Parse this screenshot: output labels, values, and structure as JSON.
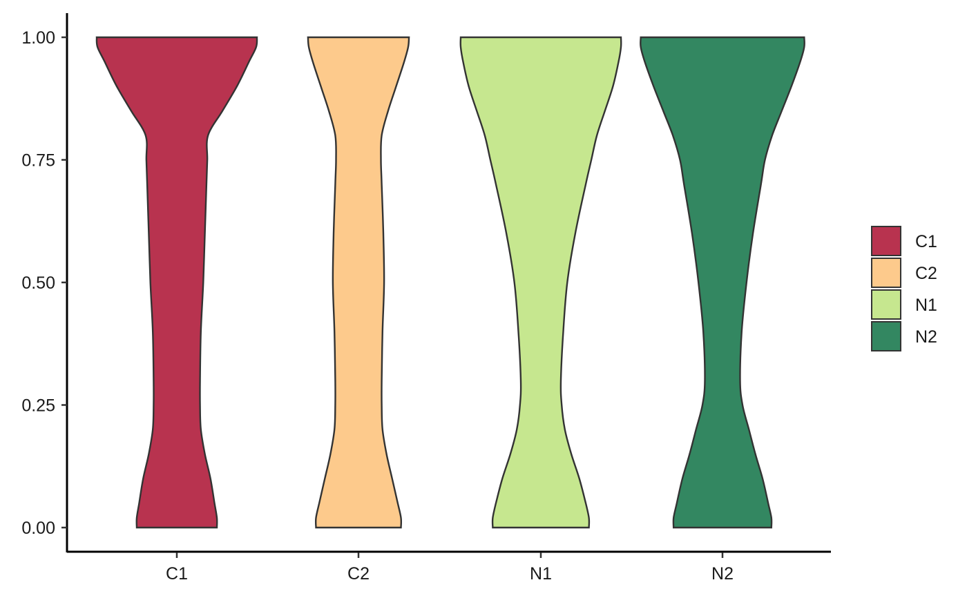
{
  "chart_data": {
    "type": "violin",
    "title": "",
    "xlabel": "",
    "ylabel": "",
    "ylim": [
      -0.04,
      1.05
    ],
    "yticks": [
      {
        "value": 0.0,
        "label": "0.00"
      },
      {
        "value": 0.25,
        "label": "0.25"
      },
      {
        "value": 0.5,
        "label": "0.50"
      },
      {
        "value": 0.75,
        "label": "0.75"
      },
      {
        "value": 1.0,
        "label": "1.00"
      }
    ],
    "categories": [
      "C1",
      "C2",
      "N1",
      "N2"
    ],
    "grid": false,
    "legend": {
      "position": "right",
      "entries": [
        {
          "label": "C1",
          "color": "#b8334f"
        },
        {
          "label": "C2",
          "color": "#fdca8c"
        },
        {
          "label": "N1",
          "color": "#c6e78f"
        },
        {
          "label": "N2",
          "color": "#338761"
        }
      ]
    },
    "series": [
      {
        "category": "C1",
        "color": "#b8334f",
        "y_range": [
          0.0,
          1.0
        ],
        "density_width": [
          [
            0.0,
            0.5
          ],
          [
            0.02,
            0.5
          ],
          [
            0.05,
            0.47
          ],
          [
            0.1,
            0.42
          ],
          [
            0.15,
            0.35
          ],
          [
            0.2,
            0.3
          ],
          [
            0.25,
            0.29
          ],
          [
            0.3,
            0.29
          ],
          [
            0.4,
            0.3
          ],
          [
            0.5,
            0.33
          ],
          [
            0.6,
            0.35
          ],
          [
            0.7,
            0.37
          ],
          [
            0.75,
            0.38
          ],
          [
            0.8,
            0.39
          ],
          [
            0.85,
            0.57
          ],
          [
            0.9,
            0.75
          ],
          [
            0.95,
            0.9
          ],
          [
            0.98,
            0.99
          ],
          [
            1.0,
            1.0
          ]
        ]
      },
      {
        "category": "C2",
        "color": "#fdca8c",
        "y_range": [
          0.0,
          1.0
        ],
        "density_width": [
          [
            0.0,
            0.53
          ],
          [
            0.02,
            0.53
          ],
          [
            0.05,
            0.49
          ],
          [
            0.1,
            0.42
          ],
          [
            0.15,
            0.35
          ],
          [
            0.2,
            0.3
          ],
          [
            0.25,
            0.29
          ],
          [
            0.3,
            0.29
          ],
          [
            0.4,
            0.3
          ],
          [
            0.5,
            0.32
          ],
          [
            0.6,
            0.31
          ],
          [
            0.7,
            0.29
          ],
          [
            0.75,
            0.28
          ],
          [
            0.8,
            0.29
          ],
          [
            0.85,
            0.37
          ],
          [
            0.9,
            0.47
          ],
          [
            0.95,
            0.57
          ],
          [
            0.98,
            0.62
          ],
          [
            1.0,
            0.63
          ]
        ]
      },
      {
        "category": "N1",
        "color": "#c6e78f",
        "y_range": [
          0.0,
          1.0
        ],
        "density_width": [
          [
            0.0,
            0.6
          ],
          [
            0.02,
            0.6
          ],
          [
            0.05,
            0.56
          ],
          [
            0.1,
            0.48
          ],
          [
            0.15,
            0.38
          ],
          [
            0.2,
            0.3
          ],
          [
            0.25,
            0.26
          ],
          [
            0.3,
            0.25
          ],
          [
            0.4,
            0.28
          ],
          [
            0.5,
            0.33
          ],
          [
            0.6,
            0.43
          ],
          [
            0.7,
            0.56
          ],
          [
            0.75,
            0.63
          ],
          [
            0.8,
            0.7
          ],
          [
            0.85,
            0.8
          ],
          [
            0.9,
            0.9
          ],
          [
            0.95,
            0.97
          ],
          [
            0.98,
            1.0
          ],
          [
            1.0,
            1.0
          ]
        ]
      },
      {
        "category": "N2",
        "color": "#338761",
        "y_range": [
          0.0,
          1.0
        ],
        "density_width": [
          [
            0.0,
            0.61
          ],
          [
            0.02,
            0.61
          ],
          [
            0.05,
            0.57
          ],
          [
            0.1,
            0.5
          ],
          [
            0.15,
            0.41
          ],
          [
            0.2,
            0.33
          ],
          [
            0.25,
            0.25
          ],
          [
            0.3,
            0.22
          ],
          [
            0.4,
            0.24
          ],
          [
            0.5,
            0.3
          ],
          [
            0.6,
            0.38
          ],
          [
            0.7,
            0.48
          ],
          [
            0.75,
            0.53
          ],
          [
            0.8,
            0.62
          ],
          [
            0.85,
            0.74
          ],
          [
            0.9,
            0.86
          ],
          [
            0.95,
            0.97
          ],
          [
            0.98,
            1.02
          ],
          [
            1.0,
            1.02
          ]
        ]
      }
    ]
  }
}
